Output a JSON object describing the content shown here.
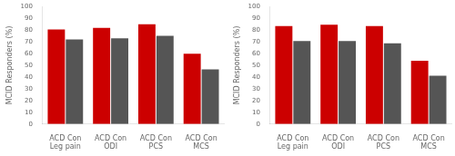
{
  "chart_data": [
    {
      "type": "bar",
      "categories": [
        "ACD Con\nLeg pain",
        "ACD Con\nODI",
        "ACD Con\nPCS",
        "ACD Con\nMCS"
      ],
      "series": [
        {
          "color": "#cc0000",
          "values": [
            80.4,
            81.9,
            84.9,
            59.8
          ]
        },
        {
          "color": "#555555",
          "values": [
            72.0,
            73.0,
            75.1,
            46.5
          ]
        }
      ],
      "ylabel": "MCID Responders (%)",
      "ylim": [
        0,
        100
      ],
      "yticks": [
        0,
        10,
        20,
        30,
        40,
        50,
        60,
        70,
        80,
        90,
        100
      ],
      "grid": false
    },
    {
      "type": "bar",
      "categories": [
        "ACD Con\nLeg pain",
        "ACD Con\nODI",
        "ACD Con\nPCS",
        "ACD Con\nMCS"
      ],
      "series": [
        {
          "color": "#cc0000",
          "values": [
            83.3,
            84.6,
            83.3,
            53.8
          ]
        },
        {
          "color": "#555555",
          "values": [
            70.6,
            70.6,
            68.8,
            41.2
          ]
        }
      ],
      "ylabel": "MCID Responders (%)",
      "ylim": [
        0,
        100
      ],
      "yticks": [
        0,
        10,
        20,
        30,
        40,
        50,
        60,
        70,
        80,
        90,
        100
      ],
      "grid": false
    }
  ]
}
